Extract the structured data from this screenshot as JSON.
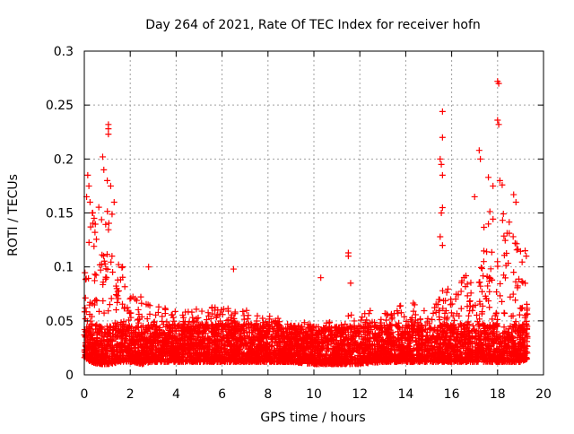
{
  "chart_data": {
    "type": "scatter",
    "title": "Day 264 of 2021, Rate Of TEC Index for receiver hofn",
    "xlabel": "GPS time / hours",
    "ylabel": "ROTI / TECUs",
    "xlim": [
      0,
      20
    ],
    "ylim": [
      0,
      0.3
    ],
    "xticks": [
      0,
      2,
      4,
      6,
      8,
      10,
      12,
      14,
      16,
      18,
      20
    ],
    "yticks": [
      0,
      0.05,
      0.1,
      0.15,
      0.2,
      0.25,
      0.3
    ],
    "xtick_labels": [
      "0",
      "2",
      "4",
      "6",
      "8",
      "10",
      "12",
      "14",
      "16",
      "18",
      "20"
    ],
    "ytick_labels": [
      "0",
      "0.05",
      "0.1",
      "0.15",
      "0.2",
      "0.25",
      "0.3"
    ],
    "grid": true,
    "marker": "+",
    "color": "#ff0000",
    "series": [
      {
        "name": "ROTI",
        "envelope": {
          "x": [
            0.0,
            0.3,
            0.6,
            0.9,
            1.2,
            1.5,
            1.8,
            2.1,
            2.5,
            3.0,
            4.0,
            5.0,
            6.0,
            7.0,
            8.0,
            9.0,
            10.0,
            11.0,
            12.0,
            13.0,
            14.0,
            15.0,
            15.6,
            16.0,
            16.5,
            17.0,
            17.3,
            17.6,
            18.0,
            18.3,
            18.6,
            19.0,
            19.3
          ],
          "y_low": [
            0.015,
            0.012,
            0.01,
            0.01,
            0.01,
            0.012,
            0.012,
            0.012,
            0.01,
            0.012,
            0.012,
            0.012,
            0.012,
            0.012,
            0.012,
            0.012,
            0.01,
            0.01,
            0.01,
            0.012,
            0.012,
            0.012,
            0.012,
            0.012,
            0.012,
            0.012,
            0.012,
            0.012,
            0.012,
            0.012,
            0.012,
            0.012,
            0.015
          ],
          "y_high": [
            0.12,
            0.15,
            0.16,
            0.17,
            0.15,
            0.12,
            0.1,
            0.085,
            0.075,
            0.065,
            0.06,
            0.062,
            0.065,
            0.06,
            0.055,
            0.05,
            0.048,
            0.05,
            0.06,
            0.062,
            0.065,
            0.07,
            0.08,
            0.085,
            0.09,
            0.12,
            0.14,
            0.15,
            0.16,
            0.15,
            0.14,
            0.12,
            0.08
          ]
        },
        "outliers": [
          {
            "x": 0.15,
            "y": 0.185
          },
          {
            "x": 0.2,
            "y": 0.175
          },
          {
            "x": 0.1,
            "y": 0.165
          },
          {
            "x": 0.25,
            "y": 0.16
          },
          {
            "x": 0.35,
            "y": 0.15
          },
          {
            "x": 0.8,
            "y": 0.202
          },
          {
            "x": 0.85,
            "y": 0.19
          },
          {
            "x": 1.05,
            "y": 0.232
          },
          {
            "x": 1.05,
            "y": 0.228
          },
          {
            "x": 1.05,
            "y": 0.223
          },
          {
            "x": 1.0,
            "y": 0.18
          },
          {
            "x": 1.15,
            "y": 0.175
          },
          {
            "x": 1.3,
            "y": 0.16
          },
          {
            "x": 2.8,
            "y": 0.1
          },
          {
            "x": 6.5,
            "y": 0.098
          },
          {
            "x": 10.3,
            "y": 0.09
          },
          {
            "x": 11.5,
            "y": 0.113
          },
          {
            "x": 11.5,
            "y": 0.11
          },
          {
            "x": 11.6,
            "y": 0.085
          },
          {
            "x": 15.6,
            "y": 0.244
          },
          {
            "x": 15.6,
            "y": 0.22
          },
          {
            "x": 15.5,
            "y": 0.2
          },
          {
            "x": 15.55,
            "y": 0.195
          },
          {
            "x": 15.6,
            "y": 0.185
          },
          {
            "x": 15.6,
            "y": 0.155
          },
          {
            "x": 15.55,
            "y": 0.15
          },
          {
            "x": 15.5,
            "y": 0.128
          },
          {
            "x": 15.6,
            "y": 0.12
          },
          {
            "x": 17.2,
            "y": 0.208
          },
          {
            "x": 17.25,
            "y": 0.2
          },
          {
            "x": 17.0,
            "y": 0.165
          },
          {
            "x": 17.6,
            "y": 0.183
          },
          {
            "x": 17.8,
            "y": 0.175
          },
          {
            "x": 18.0,
            "y": 0.272
          },
          {
            "x": 18.05,
            "y": 0.27
          },
          {
            "x": 18.0,
            "y": 0.236
          },
          {
            "x": 18.05,
            "y": 0.232
          },
          {
            "x": 18.1,
            "y": 0.18
          },
          {
            "x": 18.2,
            "y": 0.176
          },
          {
            "x": 18.7,
            "y": 0.167
          },
          {
            "x": 18.8,
            "y": 0.16
          },
          {
            "x": 19.2,
            "y": 0.115
          },
          {
            "x": 19.25,
            "y": 0.11
          }
        ]
      }
    ]
  }
}
